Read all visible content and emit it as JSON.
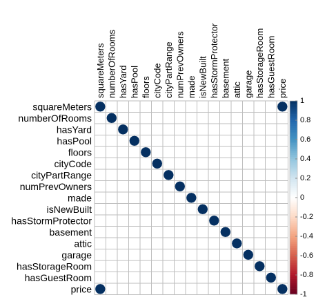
{
  "chart_data": {
    "type": "heatmap",
    "variables": [
      "squareMeters",
      "numberOfRooms",
      "hasYard",
      "hasPool",
      "floors",
      "cityCode",
      "cityPartRange",
      "numPrevOwners",
      "made",
      "isNewBuilt",
      "hasStormProtector",
      "basement",
      "attic",
      "garage",
      "hasStorageRoom",
      "hasGuestRoom",
      "price"
    ],
    "matrix": [
      [
        1,
        0,
        0,
        0,
        0,
        0,
        0,
        0,
        0,
        0,
        0,
        0,
        0,
        0,
        0,
        0,
        1
      ],
      [
        0,
        1,
        0,
        0,
        0,
        0,
        0,
        0,
        0,
        0,
        0,
        0,
        0,
        0,
        0,
        0,
        0
      ],
      [
        0,
        0,
        1,
        0,
        0,
        0,
        0,
        0,
        0,
        0,
        0,
        0,
        0,
        0,
        0,
        0,
        0
      ],
      [
        0,
        0,
        0,
        1,
        0,
        0,
        0,
        0,
        0,
        0,
        0,
        0,
        0,
        0,
        0,
        0,
        0
      ],
      [
        0,
        0,
        0,
        0,
        1,
        0,
        0,
        0,
        0,
        0,
        0,
        0,
        0,
        0,
        0,
        0,
        0
      ],
      [
        0,
        0,
        0,
        0,
        0,
        1,
        0,
        0,
        0,
        0,
        0,
        0,
        0,
        0,
        0,
        0,
        0
      ],
      [
        0,
        0,
        0,
        0,
        0,
        0,
        1,
        0,
        0,
        0,
        0,
        0,
        0,
        0,
        0,
        0,
        0
      ],
      [
        0,
        0,
        0,
        0,
        0,
        0,
        0,
        1,
        0,
        0,
        0,
        0,
        0,
        0,
        0,
        0,
        0
      ],
      [
        0,
        0,
        0,
        0,
        0,
        0,
        0,
        0,
        1,
        0,
        0,
        0,
        0,
        0,
        0,
        0,
        0
      ],
      [
        0,
        0,
        0,
        0,
        0,
        0,
        0,
        0,
        0,
        1,
        0,
        0,
        0,
        0,
        0,
        0,
        0
      ],
      [
        0,
        0,
        0,
        0,
        0,
        0,
        0,
        0,
        0,
        0,
        1,
        0,
        0,
        0,
        0,
        0,
        0
      ],
      [
        0,
        0,
        0,
        0,
        0,
        0,
        0,
        0,
        0,
        0,
        0,
        1,
        0,
        0,
        0,
        0,
        0
      ],
      [
        0,
        0,
        0,
        0,
        0,
        0,
        0,
        0,
        0,
        0,
        0,
        0,
        1,
        0,
        0,
        0,
        0
      ],
      [
        0,
        0,
        0,
        0,
        0,
        0,
        0,
        0,
        0,
        0,
        0,
        0,
        0,
        1,
        0,
        0,
        0
      ],
      [
        0,
        0,
        0,
        0,
        0,
        0,
        0,
        0,
        0,
        0,
        0,
        0,
        0,
        0,
        1,
        0,
        0
      ],
      [
        0,
        0,
        0,
        0,
        0,
        0,
        0,
        0,
        0,
        0,
        0,
        0,
        0,
        0,
        0,
        1,
        0
      ],
      [
        1,
        0,
        0,
        0,
        0,
        0,
        0,
        0,
        0,
        0,
        0,
        0,
        0,
        0,
        0,
        0,
        1
      ]
    ],
    "color_scale": {
      "range": [
        -1,
        1
      ],
      "ticks": [
        "1",
        "0.8",
        "0.6",
        "0.4",
        "0.2",
        "0",
        "-0.2",
        "-0.4",
        "-0.6",
        "-0.8",
        "-1"
      ],
      "colors": {
        "neg": "#67001f",
        "mid": "#ffffff",
        "pos": "#053061"
      }
    },
    "grid": true,
    "legend": "right"
  }
}
